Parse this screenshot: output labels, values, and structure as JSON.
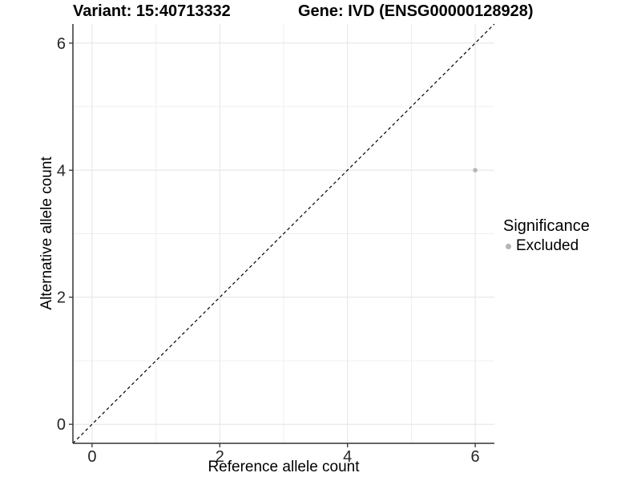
{
  "titles": {
    "variant": "Variant: 15:40713332",
    "gene": "Gene: IVD (ENSG00000128928)"
  },
  "legend": {
    "title": "Significance",
    "items": [
      {
        "label": "Excluded",
        "color": "#b5b5b5"
      }
    ]
  },
  "colors": {
    "point": "#b5b5b5",
    "grid_major": "#e4e4e4",
    "grid_minor": "#efefef",
    "axis": "#333333",
    "tick_label": "#262626",
    "reference_line": "#000000",
    "background": "#ffffff"
  },
  "chart_data": {
    "type": "scatter",
    "title": "Variant: 15:40713332    Gene: IVD (ENSG00000128928)",
    "xlabel": "Reference allele count",
    "ylabel": "Alternative allele count",
    "xlim": [
      -0.3,
      6.3
    ],
    "ylim": [
      -0.3,
      6.3
    ],
    "x_ticks": [
      0,
      2,
      4,
      6
    ],
    "y_ticks": [
      0,
      2,
      4,
      6
    ],
    "x_minor_ticks": [
      1,
      3,
      5
    ],
    "y_minor_ticks": [
      1,
      3,
      5
    ],
    "grid": true,
    "legend_position": "right",
    "legend_title": "Significance",
    "series": [
      {
        "name": "Excluded",
        "color": "#b5b5b5",
        "points": [
          {
            "x": 6,
            "y": 4
          }
        ]
      }
    ],
    "reference_line": {
      "type": "identity",
      "style": "dashed",
      "x1": -0.3,
      "y1": -0.3,
      "x2": 6.3,
      "y2": 6.3
    }
  }
}
